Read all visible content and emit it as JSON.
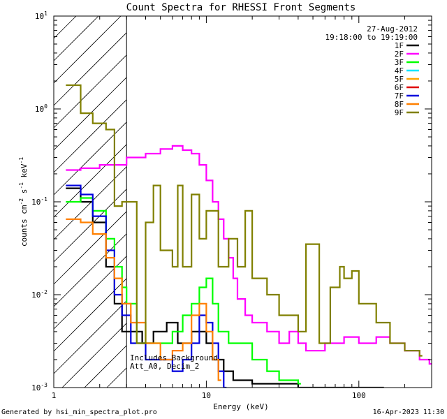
{
  "chart_data": {
    "type": "line",
    "title": "Count Spectra for RHESSI Front Segments",
    "xlabel": "Energy (keV)",
    "ylabel": "counts cm^-2 s^-1 keV^-1",
    "xscale": "log",
    "yscale": "log",
    "xlim": [
      1,
      300
    ],
    "ylim": [
      0.001,
      10
    ],
    "x_ticks": [
      "1",
      "10",
      "100"
    ],
    "x_tick_values": [
      1,
      10,
      100
    ],
    "y_ticks": [
      {
        "base": "10",
        "exp": "-3",
        "value": 0.001
      },
      {
        "base": "10",
        "exp": "-2",
        "value": 0.01
      },
      {
        "base": "10",
        "exp": "-1",
        "value": 0.1
      },
      {
        "base": "10",
        "exp": "0",
        "value": 1
      },
      {
        "base": "10",
        "exp": "1",
        "value": 10
      }
    ],
    "attenuated_region_upper_keV": 3,
    "date": "27-Aug-2012",
    "time_range": "19:18:00 to 19:19:00",
    "annotation_lines": [
      "Includes Background",
      "Att_A0, Decim_2"
    ],
    "legend_position": "top-right",
    "series": [
      {
        "name": "1F",
        "color": "#000000",
        "points": [
          [
            1.2,
            0.14
          ],
          [
            1.5,
            0.1
          ],
          [
            1.8,
            0.06
          ],
          [
            2.2,
            0.02
          ],
          [
            2.5,
            0.008
          ],
          [
            2.8,
            0.004
          ],
          [
            3.4,
            0.004
          ],
          [
            3.8,
            0.003
          ],
          [
            4.5,
            0.004
          ],
          [
            5.5,
            0.005
          ],
          [
            6.5,
            0.003
          ],
          [
            8,
            0.004
          ],
          [
            10,
            0.003
          ],
          [
            11,
            0.002
          ],
          [
            13,
            0.0015
          ],
          [
            15,
            0.0012
          ],
          [
            20,
            0.0011
          ],
          [
            40,
            0.001
          ],
          [
            60,
            0.001
          ],
          [
            80,
            0.001
          ],
          [
            110,
            0.001
          ],
          [
            140,
            0.001
          ]
        ]
      },
      {
        "name": "2F",
        "color": "#ff00ff",
        "points": [
          [
            1.2,
            0.22
          ],
          [
            1.5,
            0.23
          ],
          [
            2,
            0.25
          ],
          [
            3,
            0.3
          ],
          [
            4,
            0.33
          ],
          [
            5,
            0.37
          ],
          [
            6,
            0.4
          ],
          [
            7,
            0.36
          ],
          [
            8,
            0.33
          ],
          [
            9,
            0.25
          ],
          [
            10,
            0.17
          ],
          [
            11,
            0.1
          ],
          [
            12,
            0.065
          ],
          [
            13,
            0.04
          ],
          [
            14,
            0.025
          ],
          [
            15,
            0.015
          ],
          [
            16,
            0.009
          ],
          [
            18,
            0.006
          ],
          [
            20,
            0.005
          ],
          [
            25,
            0.004
          ],
          [
            30,
            0.003
          ],
          [
            35,
            0.004
          ],
          [
            40,
            0.003
          ],
          [
            45,
            0.0025
          ],
          [
            60,
            0.003
          ],
          [
            80,
            0.0035
          ],
          [
            100,
            0.003
          ],
          [
            130,
            0.0035
          ],
          [
            160,
            0.003
          ],
          [
            200,
            0.0025
          ],
          [
            250,
            0.002
          ],
          [
            290,
            0.0018
          ]
        ]
      },
      {
        "name": "3F",
        "color": "#00ff00",
        "points": [
          [
            1.2,
            0.1
          ],
          [
            1.5,
            0.11
          ],
          [
            1.8,
            0.08
          ],
          [
            2.2,
            0.04
          ],
          [
            2.5,
            0.02
          ],
          [
            2.8,
            0.012
          ],
          [
            3,
            0.008
          ],
          [
            3.5,
            0.003
          ],
          [
            4.5,
            0.003
          ],
          [
            6,
            0.004
          ],
          [
            7,
            0.006
          ],
          [
            8,
            0.008
          ],
          [
            9,
            0.012
          ],
          [
            10,
            0.015
          ],
          [
            11,
            0.008
          ],
          [
            12,
            0.004
          ],
          [
            14,
            0.003
          ],
          [
            20,
            0.002
          ],
          [
            25,
            0.0015
          ],
          [
            30,
            0.0012
          ],
          [
            40,
            0.0011
          ]
        ]
      },
      {
        "name": "4F",
        "color": "#00e5ff",
        "points": []
      },
      {
        "name": "5F",
        "color": "#ffa500",
        "points": []
      },
      {
        "name": "6F",
        "color": "#e00000",
        "points": []
      },
      {
        "name": "7F",
        "color": "#0000dd",
        "points": [
          [
            1.2,
            0.15
          ],
          [
            1.5,
            0.12
          ],
          [
            1.8,
            0.07
          ],
          [
            2.2,
            0.03
          ],
          [
            2.5,
            0.01
          ],
          [
            2.8,
            0.006
          ],
          [
            3.2,
            0.003
          ],
          [
            4,
            0.002
          ],
          [
            5,
            0.002
          ],
          [
            6,
            0.0015
          ],
          [
            7,
            0.002
          ],
          [
            8,
            0.003
          ],
          [
            9,
            0.006
          ],
          [
            10,
            0.005
          ],
          [
            11,
            0.003
          ],
          [
            12,
            0.0015
          ],
          [
            13,
            0.001
          ]
        ]
      },
      {
        "name": "8F",
        "color": "#ff8000",
        "points": [
          [
            1.2,
            0.065
          ],
          [
            1.5,
            0.06
          ],
          [
            1.8,
            0.045
          ],
          [
            2.2,
            0.025
          ],
          [
            2.5,
            0.015
          ],
          [
            2.8,
            0.008
          ],
          [
            3.2,
            0.005
          ],
          [
            4,
            0.003
          ],
          [
            5,
            0.002
          ],
          [
            6,
            0.0025
          ],
          [
            7,
            0.003
          ],
          [
            8,
            0.006
          ],
          [
            9,
            0.008
          ],
          [
            10,
            0.004
          ],
          [
            11,
            0.002
          ],
          [
            12,
            0.0012
          ]
        ]
      },
      {
        "name": "9F",
        "color": "#808000",
        "points": [
          [
            1.2,
            1.8
          ],
          [
            1.5,
            0.9
          ],
          [
            1.8,
            0.7
          ],
          [
            2.2,
            0.6
          ],
          [
            2.5,
            0.09
          ],
          [
            2.8,
            0.1
          ],
          [
            3,
            0.1
          ],
          [
            3.5,
            0.003
          ],
          [
            4,
            0.06
          ],
          [
            4.5,
            0.15
          ],
          [
            5,
            0.03
          ],
          [
            6,
            0.02
          ],
          [
            6.5,
            0.15
          ],
          [
            7,
            0.02
          ],
          [
            8,
            0.12
          ],
          [
            9,
            0.04
          ],
          [
            10,
            0.08
          ],
          [
            12,
            0.02
          ],
          [
            14,
            0.04
          ],
          [
            16,
            0.02
          ],
          [
            18,
            0.08
          ],
          [
            20,
            0.015
          ],
          [
            25,
            0.01
          ],
          [
            30,
            0.006
          ],
          [
            40,
            0.004
          ],
          [
            45,
            0.035
          ],
          [
            55,
            0.003
          ],
          [
            65,
            0.012
          ],
          [
            75,
            0.02
          ],
          [
            80,
            0.015
          ],
          [
            90,
            0.018
          ],
          [
            100,
            0.008
          ],
          [
            130,
            0.005
          ],
          [
            160,
            0.003
          ],
          [
            200,
            0.0025
          ],
          [
            250,
            0.0022
          ]
        ]
      }
    ]
  },
  "footer": {
    "left": "Generated by hsi_min_spectra_plot.pro",
    "right": "16-Apr-2023 11:30"
  }
}
